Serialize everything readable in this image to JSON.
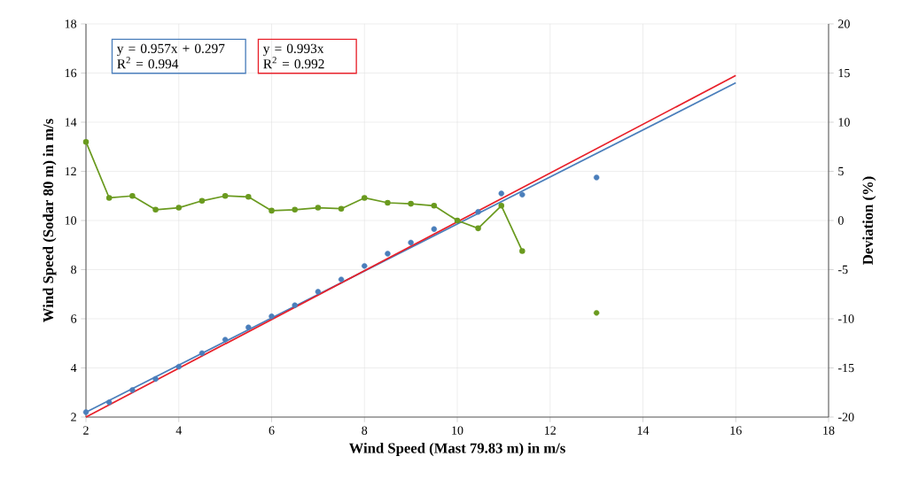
{
  "chart_data": {
    "type": "scatter",
    "xlabel": "Wind Speed (Mast 79.83 m) in m/s",
    "ylabel": "Wind Speed (Sodar 80 m) in m/s",
    "y2label": "Deviation (%)",
    "xlim": [
      2,
      18
    ],
    "xticks": [
      2,
      4,
      6,
      8,
      10,
      12,
      14,
      16,
      18
    ],
    "ylim": [
      2,
      18
    ],
    "yticks": [
      2,
      4,
      6,
      8,
      10,
      12,
      14,
      16,
      18
    ],
    "y2lim": [
      -20,
      20
    ],
    "y2ticks": [
      -20,
      -15,
      -10,
      -5,
      0,
      5,
      10,
      15,
      20
    ],
    "grid": true,
    "marker": "circle",
    "series": [
      {
        "color": "#4a7ebb",
        "x": [
          2,
          2.5,
          3,
          3.5,
          4,
          4.5,
          5,
          5.5,
          6,
          6.5,
          7,
          7.5,
          8,
          8.5,
          9,
          9.5,
          10,
          10.45,
          10.95,
          11.4,
          13
        ],
        "values": [
          2.2,
          2.6,
          3.1,
          3.55,
          4.05,
          4.6,
          5.15,
          5.65,
          6.1,
          6.55,
          7.1,
          7.6,
          8.15,
          8.65,
          9.1,
          9.65,
          null,
          10.35,
          11.1,
          11.05,
          11.75
        ]
      },
      {
        "type": "line",
        "axis": "y2",
        "color": "#6a9a1f",
        "x": [
          2,
          2.5,
          3,
          3.5,
          4,
          4.5,
          5,
          5.5,
          6,
          6.5,
          7,
          7.5,
          8,
          8.5,
          9,
          9.5,
          10,
          10.45,
          10.95,
          11.4
        ],
        "values": [
          8.0,
          2.3,
          2.5,
          1.1,
          1.3,
          2.0,
          2.5,
          2.4,
          1.0,
          1.1,
          1.3,
          1.2,
          2.3,
          1.8,
          1.7,
          1.5,
          0,
          -0.8,
          1.5,
          -3.1
        ]
      },
      {
        "axis": "y2",
        "color": "#6a9a1f",
        "x": [
          13
        ],
        "values": [
          -9.4
        ]
      },
      {
        "type": "line",
        "marker": "none",
        "color": "#4a7ebb",
        "x": [
          2,
          16
        ],
        "values": [
          2.2,
          15.6
        ]
      },
      {
        "type": "line",
        "marker": "none",
        "color": "#e8202a",
        "x": [
          2,
          16
        ],
        "values": [
          2.0,
          15.9
        ]
      }
    ],
    "annotations": [
      "y = 0.957x + 0.297",
      "R$^{2}$ = 0.994",
      "y = 0.993x",
      "R$^{2}$ = 0.992"
    ]
  }
}
